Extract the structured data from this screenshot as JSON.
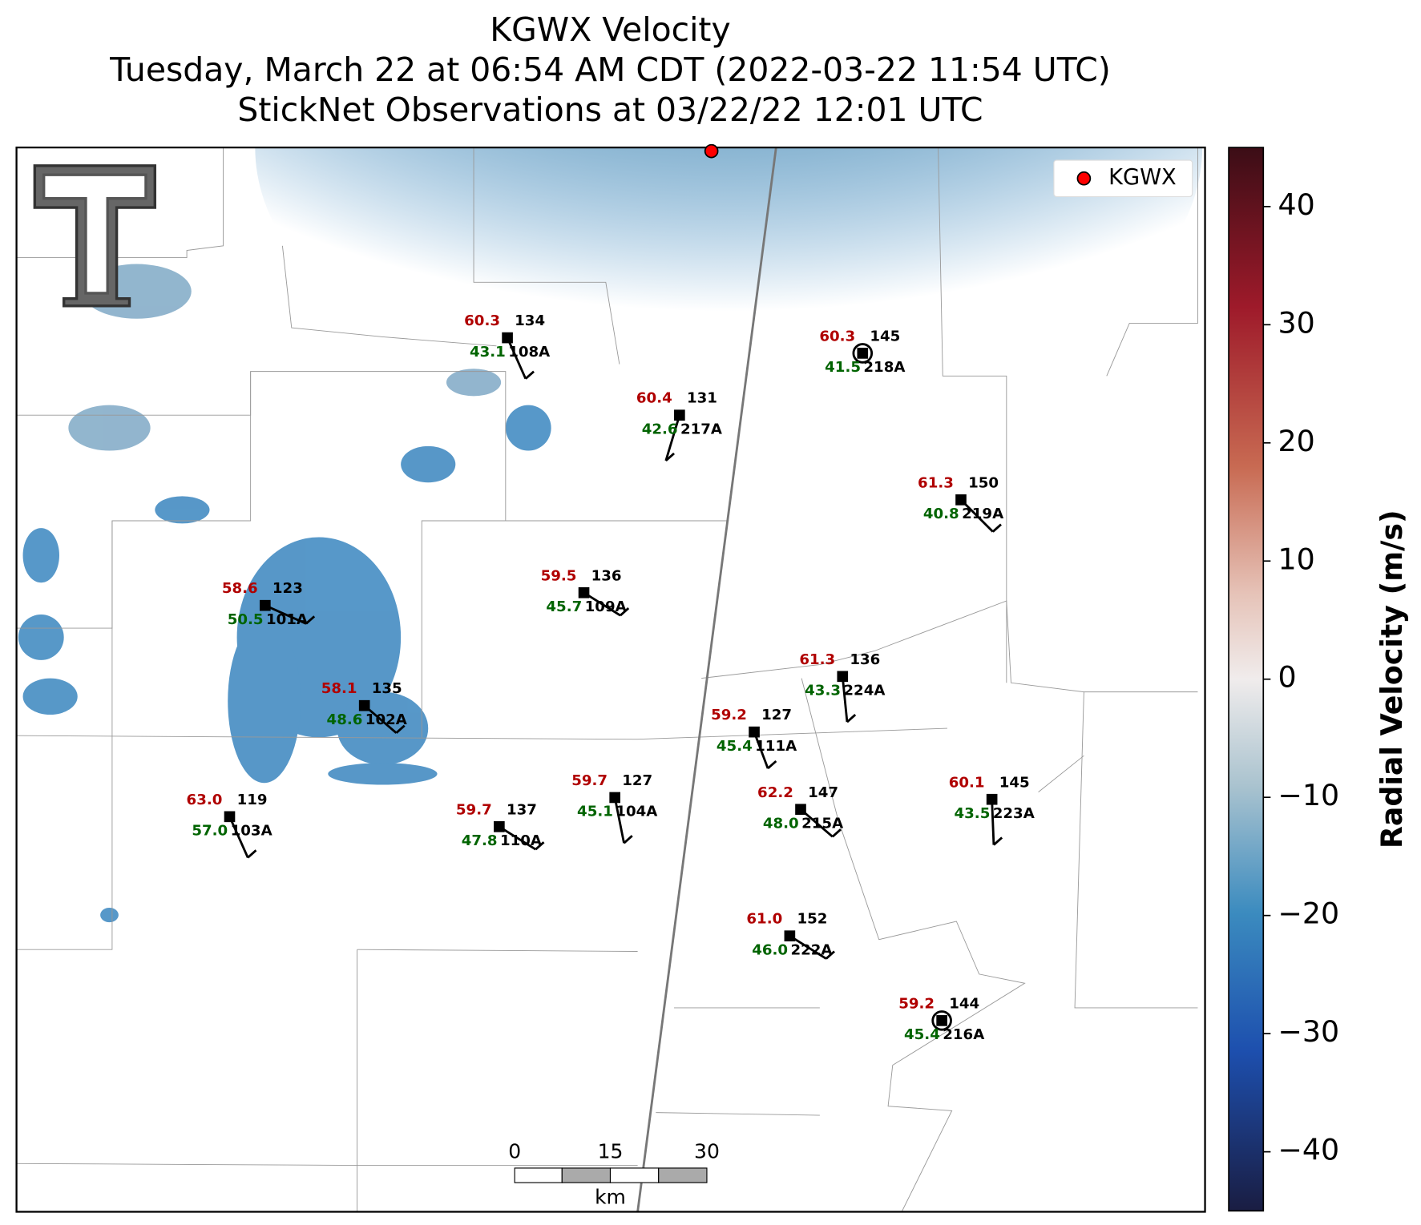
{
  "header": {
    "title": [
      "KGWX Velocity",
      "Tuesday, March 22 at 06:54 AM CDT (2022-03-22 11:54 UTC)",
      "StickNet Observations at 03/22/22 12:01 UTC"
    ]
  },
  "legend": {
    "label": "KGWX",
    "color": "#ff0000"
  },
  "colorbar": {
    "label": "Radial Velocity (m/s)",
    "lim": [
      -45,
      45
    ],
    "ticks": [
      {
        "value": -40,
        "label": "−40"
      },
      {
        "value": -30,
        "label": "−30"
      },
      {
        "value": -20,
        "label": "−20"
      },
      {
        "value": -10,
        "label": "−10"
      },
      0,
      10,
      20,
      30,
      40
    ]
  },
  "scale_bar": {
    "ticks": [
      "0",
      "15",
      "30"
    ],
    "unit": "km"
  },
  "stations": [
    {
      "id": "108A",
      "temp": "60.3",
      "dew": "43.1",
      "value": "134"
    },
    {
      "id": "218A",
      "temp": "60.3",
      "dew": "41.5",
      "value": "145"
    },
    {
      "id": "217A",
      "temp": "60.4",
      "dew": "42.6",
      "value": "131"
    },
    {
      "id": "219A",
      "temp": "61.3",
      "dew": "40.8",
      "value": "150"
    },
    {
      "id": "109A",
      "temp": "59.5",
      "dew": "45.7",
      "value": "136"
    },
    {
      "id": "101A",
      "temp": "58.6",
      "dew": "50.5",
      "value": "123"
    },
    {
      "id": "224A",
      "temp": "61.3",
      "dew": "43.3",
      "value": "136"
    },
    {
      "id": "102A",
      "temp": "58.1",
      "dew": "48.6",
      "value": "135"
    },
    {
      "id": "111A",
      "temp": "59.2",
      "dew": "45.4",
      "value": "127"
    },
    {
      "id": "103A",
      "temp": "63.0",
      "dew": "57.0",
      "value": "119"
    },
    {
      "id": "110A",
      "temp": "59.7",
      "dew": "47.8",
      "value": "137"
    },
    {
      "id": "104A",
      "temp": "59.7",
      "dew": "45.1",
      "value": "127"
    },
    {
      "id": "215A",
      "temp": "62.2",
      "dew": "48.0",
      "value": "147"
    },
    {
      "id": "223A",
      "temp": "60.1",
      "dew": "43.5",
      "value": "145"
    },
    {
      "id": "222A",
      "temp": "61.0",
      "dew": "46.0",
      "value": "152"
    },
    {
      "id": "216A",
      "temp": "59.2",
      "dew": "45.4",
      "value": "144"
    }
  ]
}
